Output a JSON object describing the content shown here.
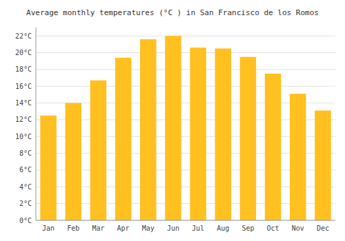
{
  "chart_data": {
    "type": "bar",
    "title": "Average monthly temperatures (°C ) in San Francisco de los Romos",
    "categories": [
      "Jan",
      "Feb",
      "Mar",
      "Apr",
      "May",
      "Jun",
      "Jul",
      "Aug",
      "Sep",
      "Oct",
      "Nov",
      "Dec"
    ],
    "values": [
      12.5,
      14.0,
      16.7,
      19.4,
      21.6,
      22.0,
      20.6,
      20.5,
      19.5,
      17.5,
      15.1,
      13.1
    ],
    "color": "#FFC020",
    "ylim": [
      0,
      23
    ],
    "yticks": [
      {
        "value": 0,
        "label": "0°C"
      },
      {
        "value": 2,
        "label": "2°C"
      },
      {
        "value": 4,
        "label": "4°C"
      },
      {
        "value": 6,
        "label": "6°C"
      },
      {
        "value": 8,
        "label": "8°C"
      },
      {
        "value": 10,
        "label": "10°C"
      },
      {
        "value": 12,
        "label": "12°C"
      },
      {
        "value": 14,
        "label": "14°C"
      },
      {
        "value": 16,
        "label": "16°C"
      },
      {
        "value": 18,
        "label": "18°C"
      },
      {
        "value": 20,
        "label": "20°C"
      },
      {
        "value": 22,
        "label": "22°C"
      }
    ],
    "grid": true
  }
}
